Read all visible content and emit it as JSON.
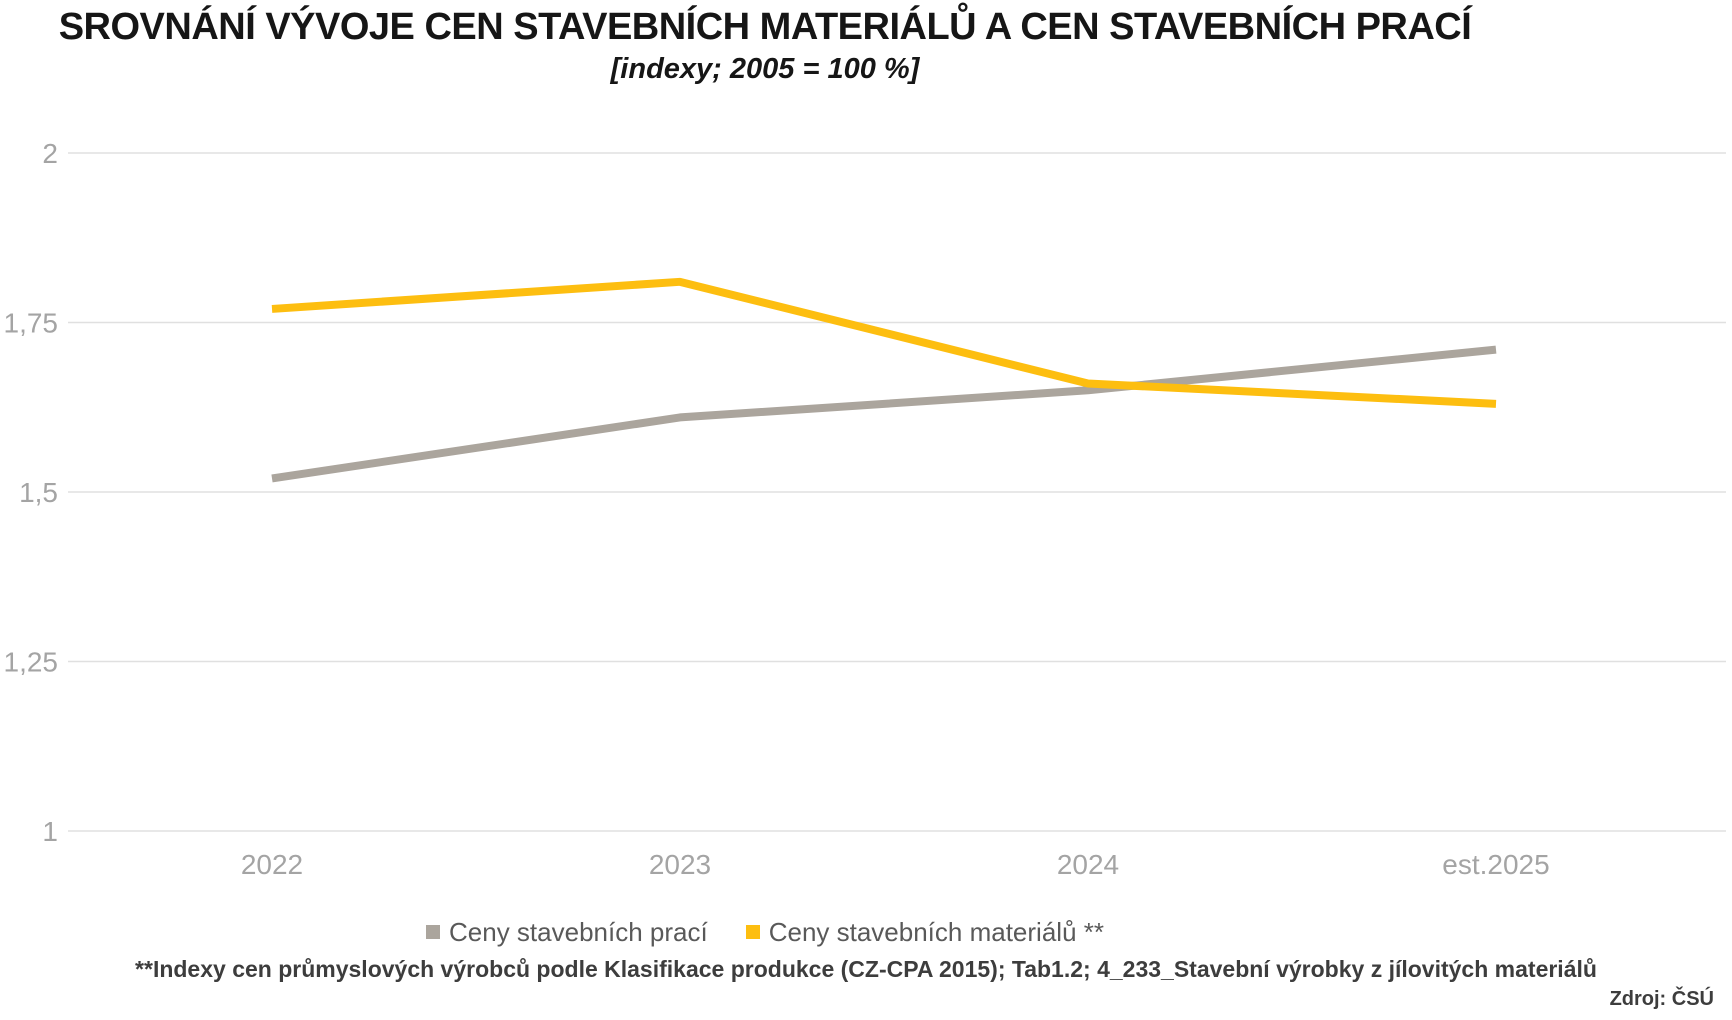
{
  "title": "SROVNÁNÍ VÝVOJE CEN STAVEBNÍCH MATERIÁLŮ A CEN STAVEBNÍCH PRACÍ",
  "subtitle": "[indexy; 2005 = 100 %]",
  "footnote": "**Indexy cen průmyslových výrobců podle Klasifikace produkce (CZ-CPA 2015); Tab1.2; 4_233_Stavební výrobky z jílovitých materiálů",
  "source": "Zdroj: ČSÚ",
  "colors": {
    "work_line": "#aba59d",
    "materials_line": "#fdbe10",
    "grid_line": "#e0e0e0",
    "axis_label": "#a4a4a4",
    "legend_text": "#595959",
    "title_text": "#161616",
    "footnote_text": "#3d3d3d"
  },
  "chart_data": {
    "type": "line",
    "categories": [
      "2022",
      "2023",
      "2024",
      "est.2025"
    ],
    "series": [
      {
        "name": "Ceny stavebních prací",
        "color_key": "work_line",
        "values": [
          1.52,
          1.61,
          1.65,
          1.71
        ]
      },
      {
        "name": "Ceny stavebních materiálů **",
        "color_key": "materials_line",
        "values": [
          1.77,
          1.81,
          1.66,
          1.63
        ]
      }
    ],
    "yticks": [
      {
        "value": 2,
        "label": "2"
      },
      {
        "value": 1.75,
        "label": "1,75"
      },
      {
        "value": 1.5,
        "label": "1,5"
      },
      {
        "value": 1.25,
        "label": "1,25"
      },
      {
        "value": 1,
        "label": "1"
      }
    ],
    "ylim": [
      1,
      2
    ],
    "grid": true,
    "legend_position": "bottom",
    "title": "SROVNÁNÍ VÝVOJE CEN STAVEBNÍCH MATERIÁLŮ A CEN STAVEBNÍCH PRACÍ",
    "xlabel": "",
    "ylabel": ""
  }
}
